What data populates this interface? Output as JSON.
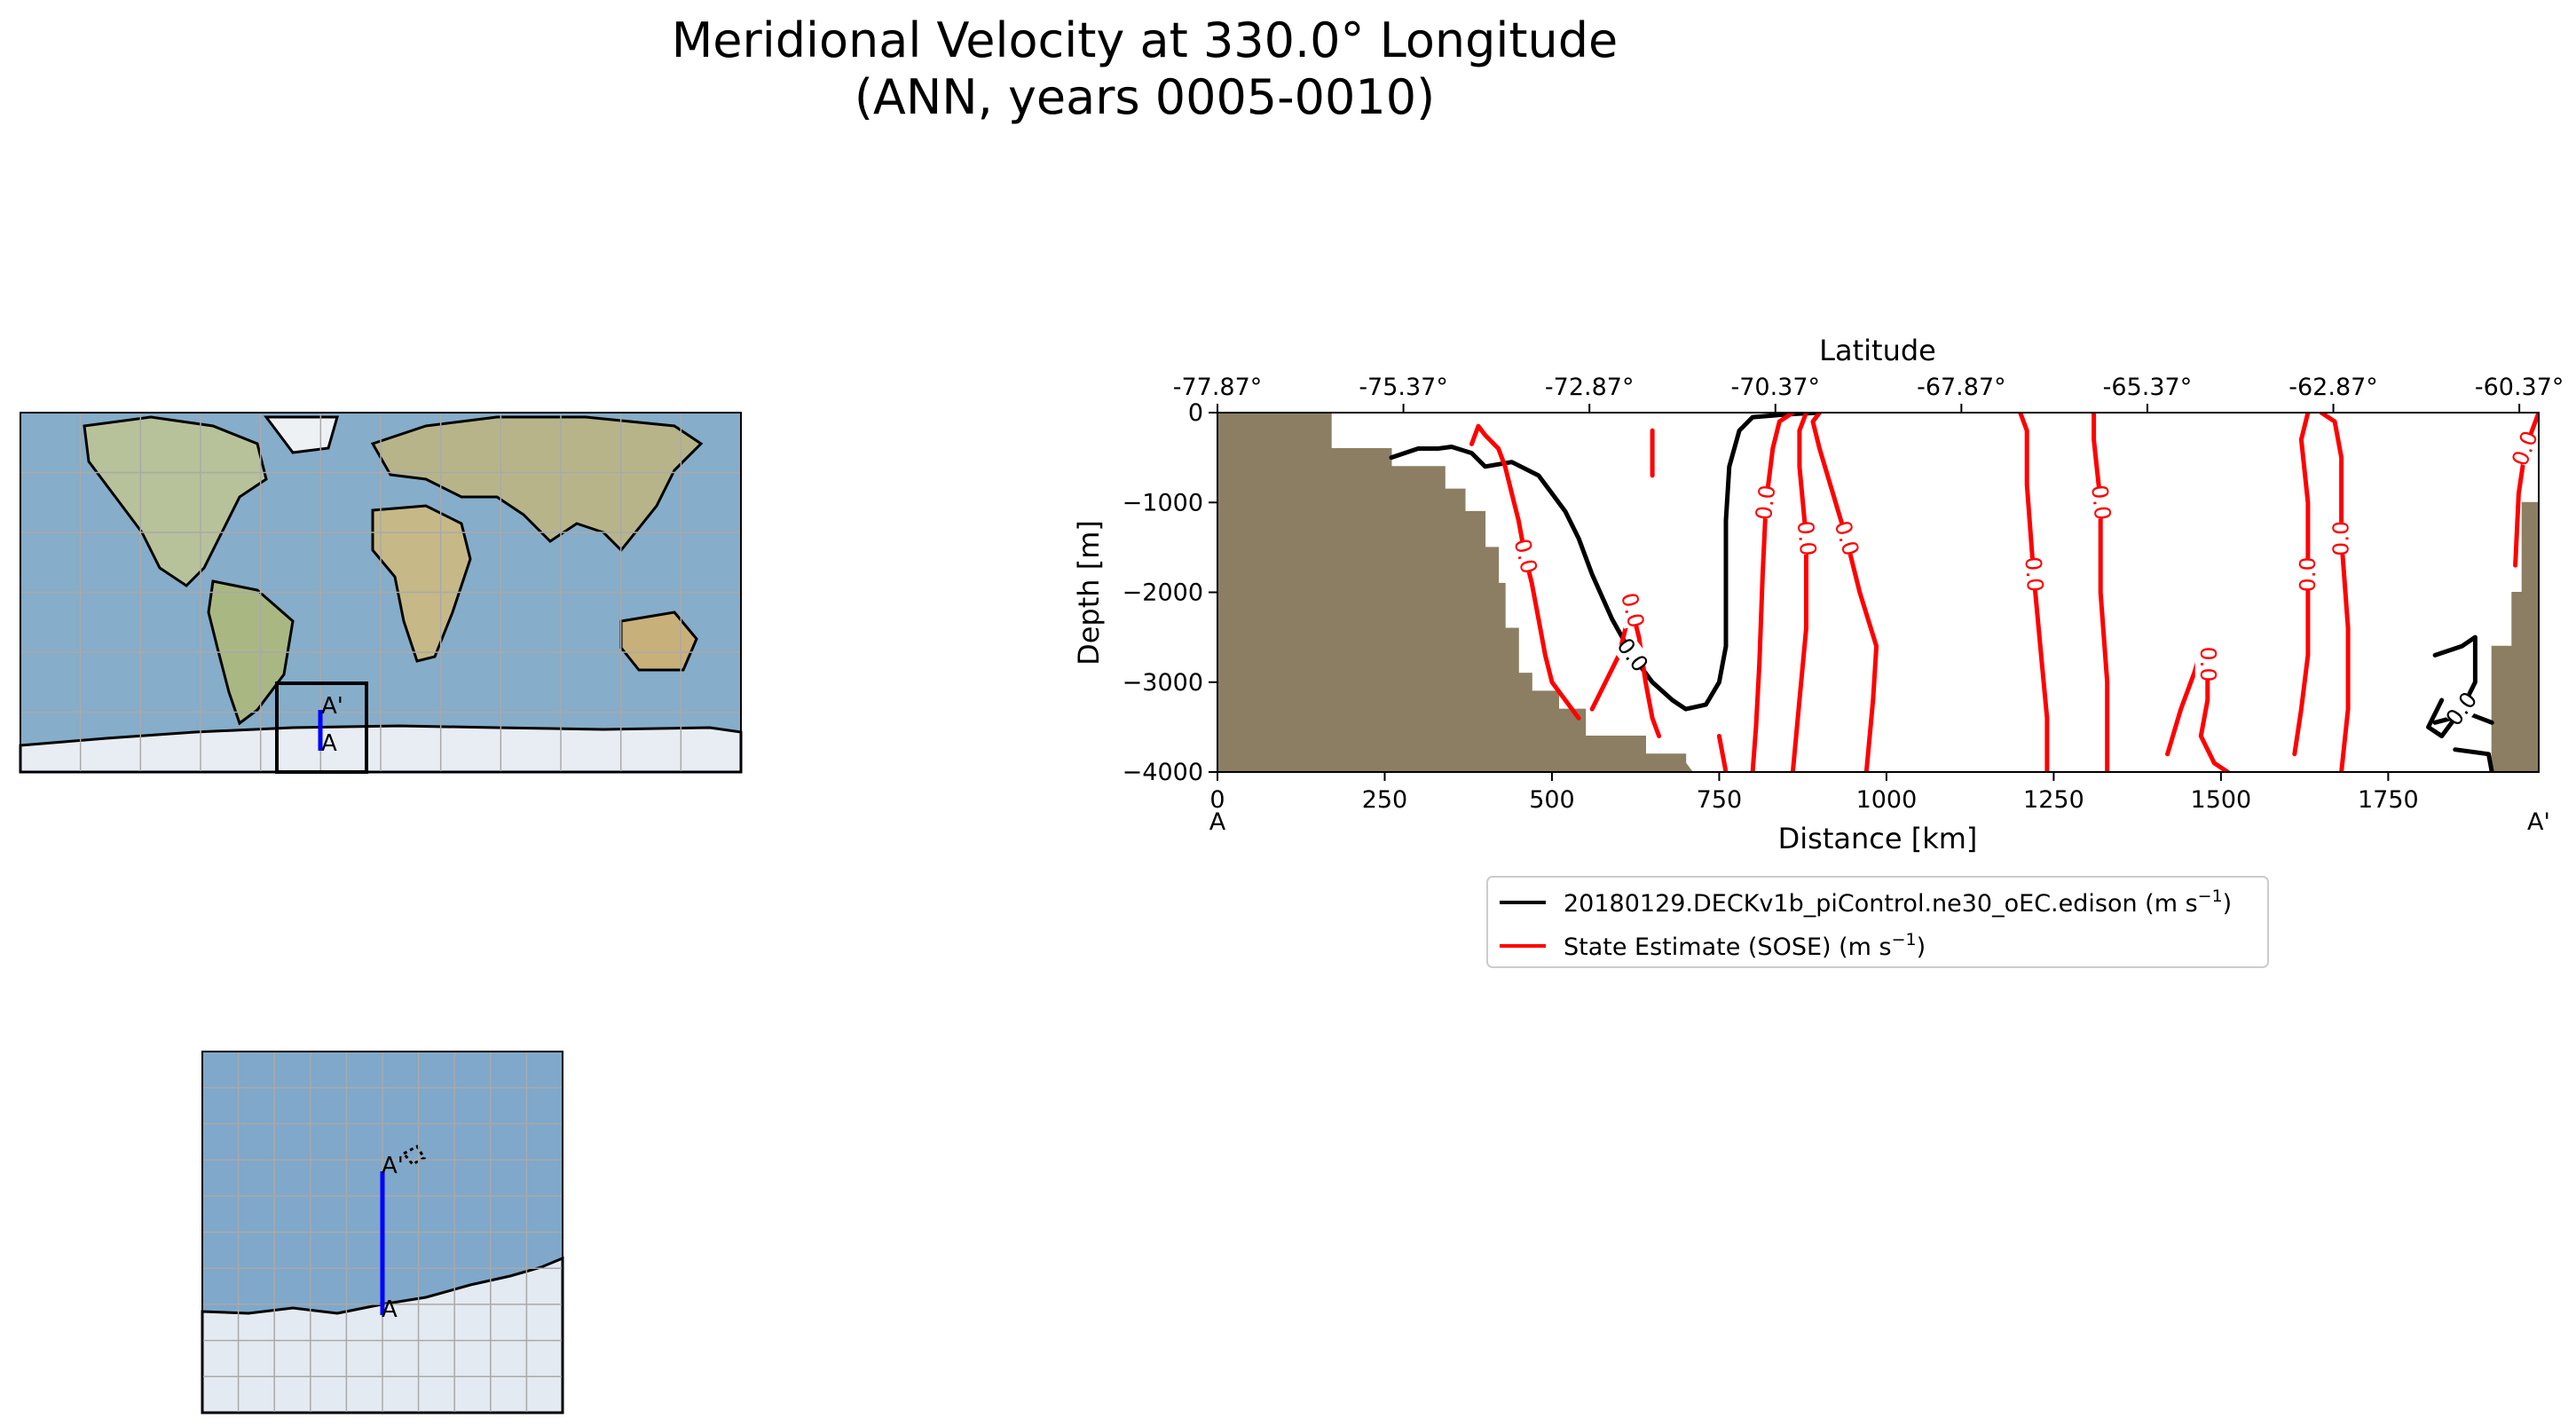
{
  "figure": {
    "title_line1": "Meridional Velocity at 330.0° Longitude",
    "title_line2": "(ANN, years 0005-0010)"
  },
  "global_map": {
    "start_label": "A",
    "end_label": "A'"
  },
  "inset_map": {
    "start_label": "A",
    "end_label": "A'"
  },
  "colors": {
    "model": "#000000",
    "obs": "#ff0000",
    "land": "#8c7e63",
    "ocean": "#7ea9cb",
    "transect": "#0000ff"
  },
  "chart_data": {
    "type": "contour",
    "title": "Meridional Velocity at 330.0° Longitude (ANN, years 0005-0010)",
    "xlabel": "Distance [km]",
    "ylabel": "Depth [m]",
    "top_xlabel": "Latitude",
    "xlim": [
      0,
      1975
    ],
    "ylim": [
      -4000,
      0
    ],
    "x_ticks": [
      0,
      250,
      500,
      750,
      1000,
      1250,
      1500,
      1750
    ],
    "x_tick_labels": [
      "0",
      "250",
      "500",
      "750",
      "1000",
      "1250",
      "1500",
      "1750"
    ],
    "y_ticks": [
      0,
      -1000,
      -2000,
      -3000,
      -4000
    ],
    "y_tick_labels": [
      "0",
      "−1000",
      "−2000",
      "−3000",
      "−4000"
    ],
    "top_ticks_km": [
      0,
      278,
      556,
      834,
      1112,
      1390,
      1668,
      1946
    ],
    "top_tick_labels": [
      "-77.87°",
      "-75.37°",
      "-72.87°",
      "-70.37°",
      "-67.87°",
      "-65.37°",
      "-62.87°",
      "-60.37°"
    ],
    "section_start_label": "A",
    "section_end_label": "A'",
    "contour_level_label": "0.0",
    "legend": [
      {
        "name": "20180129.DECKv1b_piControl.ne30_oEC.edison (m s",
        "unit_sup": "−1",
        "close": ")",
        "color": "#000000",
        "style": "solid"
      },
      {
        "name": "State Estimate (SOSE) (m s",
        "unit_sup": "−1",
        "close": ")",
        "color": "#ff0000",
        "style": "solid"
      }
    ],
    "bathymetry": [
      [
        0,
        0
      ],
      [
        170,
        0
      ],
      [
        170,
        -400
      ],
      [
        260,
        -400
      ],
      [
        260,
        -600
      ],
      [
        340,
        -600
      ],
      [
        340,
        -850
      ],
      [
        370,
        -850
      ],
      [
        370,
        -1100
      ],
      [
        400,
        -1100
      ],
      [
        400,
        -1500
      ],
      [
        420,
        -1500
      ],
      [
        420,
        -1900
      ],
      [
        430,
        -1900
      ],
      [
        430,
        -2400
      ],
      [
        450,
        -2400
      ],
      [
        450,
        -2900
      ],
      [
        470,
        -2900
      ],
      [
        470,
        -3100
      ],
      [
        510,
        -3100
      ],
      [
        510,
        -3300
      ],
      [
        550,
        -3300
      ],
      [
        550,
        -3600
      ],
      [
        640,
        -3600
      ],
      [
        640,
        -3800
      ],
      [
        700,
        -3800
      ],
      [
        700,
        -3900
      ],
      [
        710,
        -4000
      ],
      [
        0,
        -4000
      ]
    ],
    "bathymetry_right": [
      [
        1905,
        -4000
      ],
      [
        1905,
        -2600
      ],
      [
        1935,
        -2600
      ],
      [
        1935,
        -2000
      ],
      [
        1950,
        -2000
      ],
      [
        1950,
        -1000
      ],
      [
        1975,
        -1000
      ],
      [
        1975,
        -4000
      ]
    ],
    "series": [
      {
        "name": "model",
        "contours": [
          [
            [
              260,
              -500
            ],
            [
              300,
              -400
            ],
            [
              330,
              -400
            ],
            [
              350,
              -380
            ],
            [
              380,
              -450
            ],
            [
              400,
              -600
            ],
            [
              440,
              -550
            ],
            [
              480,
              -700
            ],
            [
              500,
              -900
            ],
            [
              520,
              -1100
            ],
            [
              540,
              -1400
            ],
            [
              560,
              -1800
            ],
            [
              590,
              -2300
            ],
            [
              620,
              -2700
            ],
            [
              650,
              -3000
            ],
            [
              680,
              -3200
            ],
            [
              700,
              -3300
            ],
            [
              730,
              -3250
            ],
            [
              750,
              -3000
            ],
            [
              760,
              -2600
            ],
            [
              760,
              -2000
            ],
            [
              760,
              -1200
            ],
            [
              765,
              -600
            ],
            [
              780,
              -200
            ],
            [
              800,
              -50
            ],
            [
              850,
              -20
            ],
            [
              900,
              0
            ]
          ],
          [
            [
              1820,
              -2700
            ],
            [
              1860,
              -2600
            ],
            [
              1880,
              -2500
            ],
            [
              1880,
              -3000
            ],
            [
              1860,
              -3300
            ],
            [
              1830,
              -3600
            ],
            [
              1810,
              -3500
            ],
            [
              1830,
              -3200
            ]
          ],
          [
            [
              1850,
              -3750
            ],
            [
              1900,
              -3800
            ],
            [
              1905,
              -4000
            ]
          ],
          [
            [
              1820,
              -3450
            ],
            [
              1870,
              -3350
            ],
            [
              1905,
              -3450
            ]
          ]
        ]
      },
      {
        "name": "obs",
        "contours": [
          [
            [
              380,
              -350
            ],
            [
              390,
              -150
            ],
            [
              400,
              -250
            ],
            [
              420,
              -400
            ],
            [
              430,
              -600
            ],
            [
              440,
              -900
            ],
            [
              450,
              -1200
            ],
            [
              460,
              -1600
            ],
            [
              470,
              -1900
            ],
            [
              480,
              -2300
            ],
            [
              490,
              -2700
            ],
            [
              500,
              -3000
            ],
            [
              520,
              -3200
            ],
            [
              540,
              -3400
            ]
          ],
          [
            [
              560,
              -3300
            ],
            [
              580,
              -3000
            ],
            [
              600,
              -2700
            ],
            [
              610,
              -2400
            ],
            [
              620,
              -2200
            ],
            [
              630,
              -2500
            ],
            [
              640,
              -3000
            ],
            [
              650,
              -3400
            ],
            [
              660,
              -3600
            ]
          ],
          [
            [
              650,
              -200
            ],
            [
              650,
              -450
            ],
            [
              650,
              -700
            ]
          ],
          [
            [
              750,
              -3600
            ],
            [
              760,
              -4000
            ]
          ],
          [
            [
              800,
              -4000
            ],
            [
              805,
              -3500
            ],
            [
              810,
              -2800
            ],
            [
              815,
              -1800
            ],
            [
              820,
              -1000
            ],
            [
              830,
              -400
            ],
            [
              840,
              -100
            ],
            [
              860,
              0
            ]
          ],
          [
            [
              860,
              -4000
            ],
            [
              870,
              -3200
            ],
            [
              880,
              -2400
            ],
            [
              880,
              -1400
            ],
            [
              870,
              -600
            ],
            [
              870,
              -200
            ],
            [
              880,
              0
            ]
          ],
          [
            [
              970,
              -4000
            ],
            [
              980,
              -3200
            ],
            [
              985,
              -2600
            ],
            [
              960,
              -2000
            ],
            [
              940,
              -1400
            ],
            [
              920,
              -900
            ],
            [
              900,
              -400
            ],
            [
              890,
              -100
            ],
            [
              900,
              0
            ]
          ],
          [
            [
              1240,
              -4000
            ],
            [
              1240,
              -3400
            ],
            [
              1230,
              -2600
            ],
            [
              1220,
              -1800
            ],
            [
              1210,
              -800
            ],
            [
              1210,
              -200
            ],
            [
              1200,
              0
            ]
          ],
          [
            [
              1330,
              -4000
            ],
            [
              1330,
              -3000
            ],
            [
              1320,
              -2000
            ],
            [
              1320,
              -1000
            ],
            [
              1310,
              -300
            ],
            [
              1310,
              0
            ]
          ],
          [
            [
              1420,
              -3800
            ],
            [
              1440,
              -3300
            ],
            [
              1460,
              -2900
            ],
            [
              1470,
              -2650
            ],
            [
              1480,
              -2800
            ],
            [
              1480,
              -3200
            ],
            [
              1470,
              -3600
            ],
            [
              1490,
              -3900
            ],
            [
              1510,
              -4000
            ]
          ],
          [
            [
              1610,
              -3800
            ],
            [
              1620,
              -3300
            ],
            [
              1630,
              -2700
            ],
            [
              1630,
              -1800
            ],
            [
              1630,
              -1000
            ],
            [
              1620,
              -300
            ],
            [
              1630,
              0
            ]
          ],
          [
            [
              1680,
              -4000
            ],
            [
              1690,
              -3300
            ],
            [
              1690,
              -2400
            ],
            [
              1680,
              -1400
            ],
            [
              1680,
              -500
            ],
            [
              1670,
              -100
            ],
            [
              1650,
              0
            ]
          ],
          [
            [
              1940,
              -1700
            ],
            [
              1945,
              -900
            ],
            [
              1955,
              -400
            ],
            [
              1975,
              0
            ]
          ]
        ]
      }
    ]
  }
}
